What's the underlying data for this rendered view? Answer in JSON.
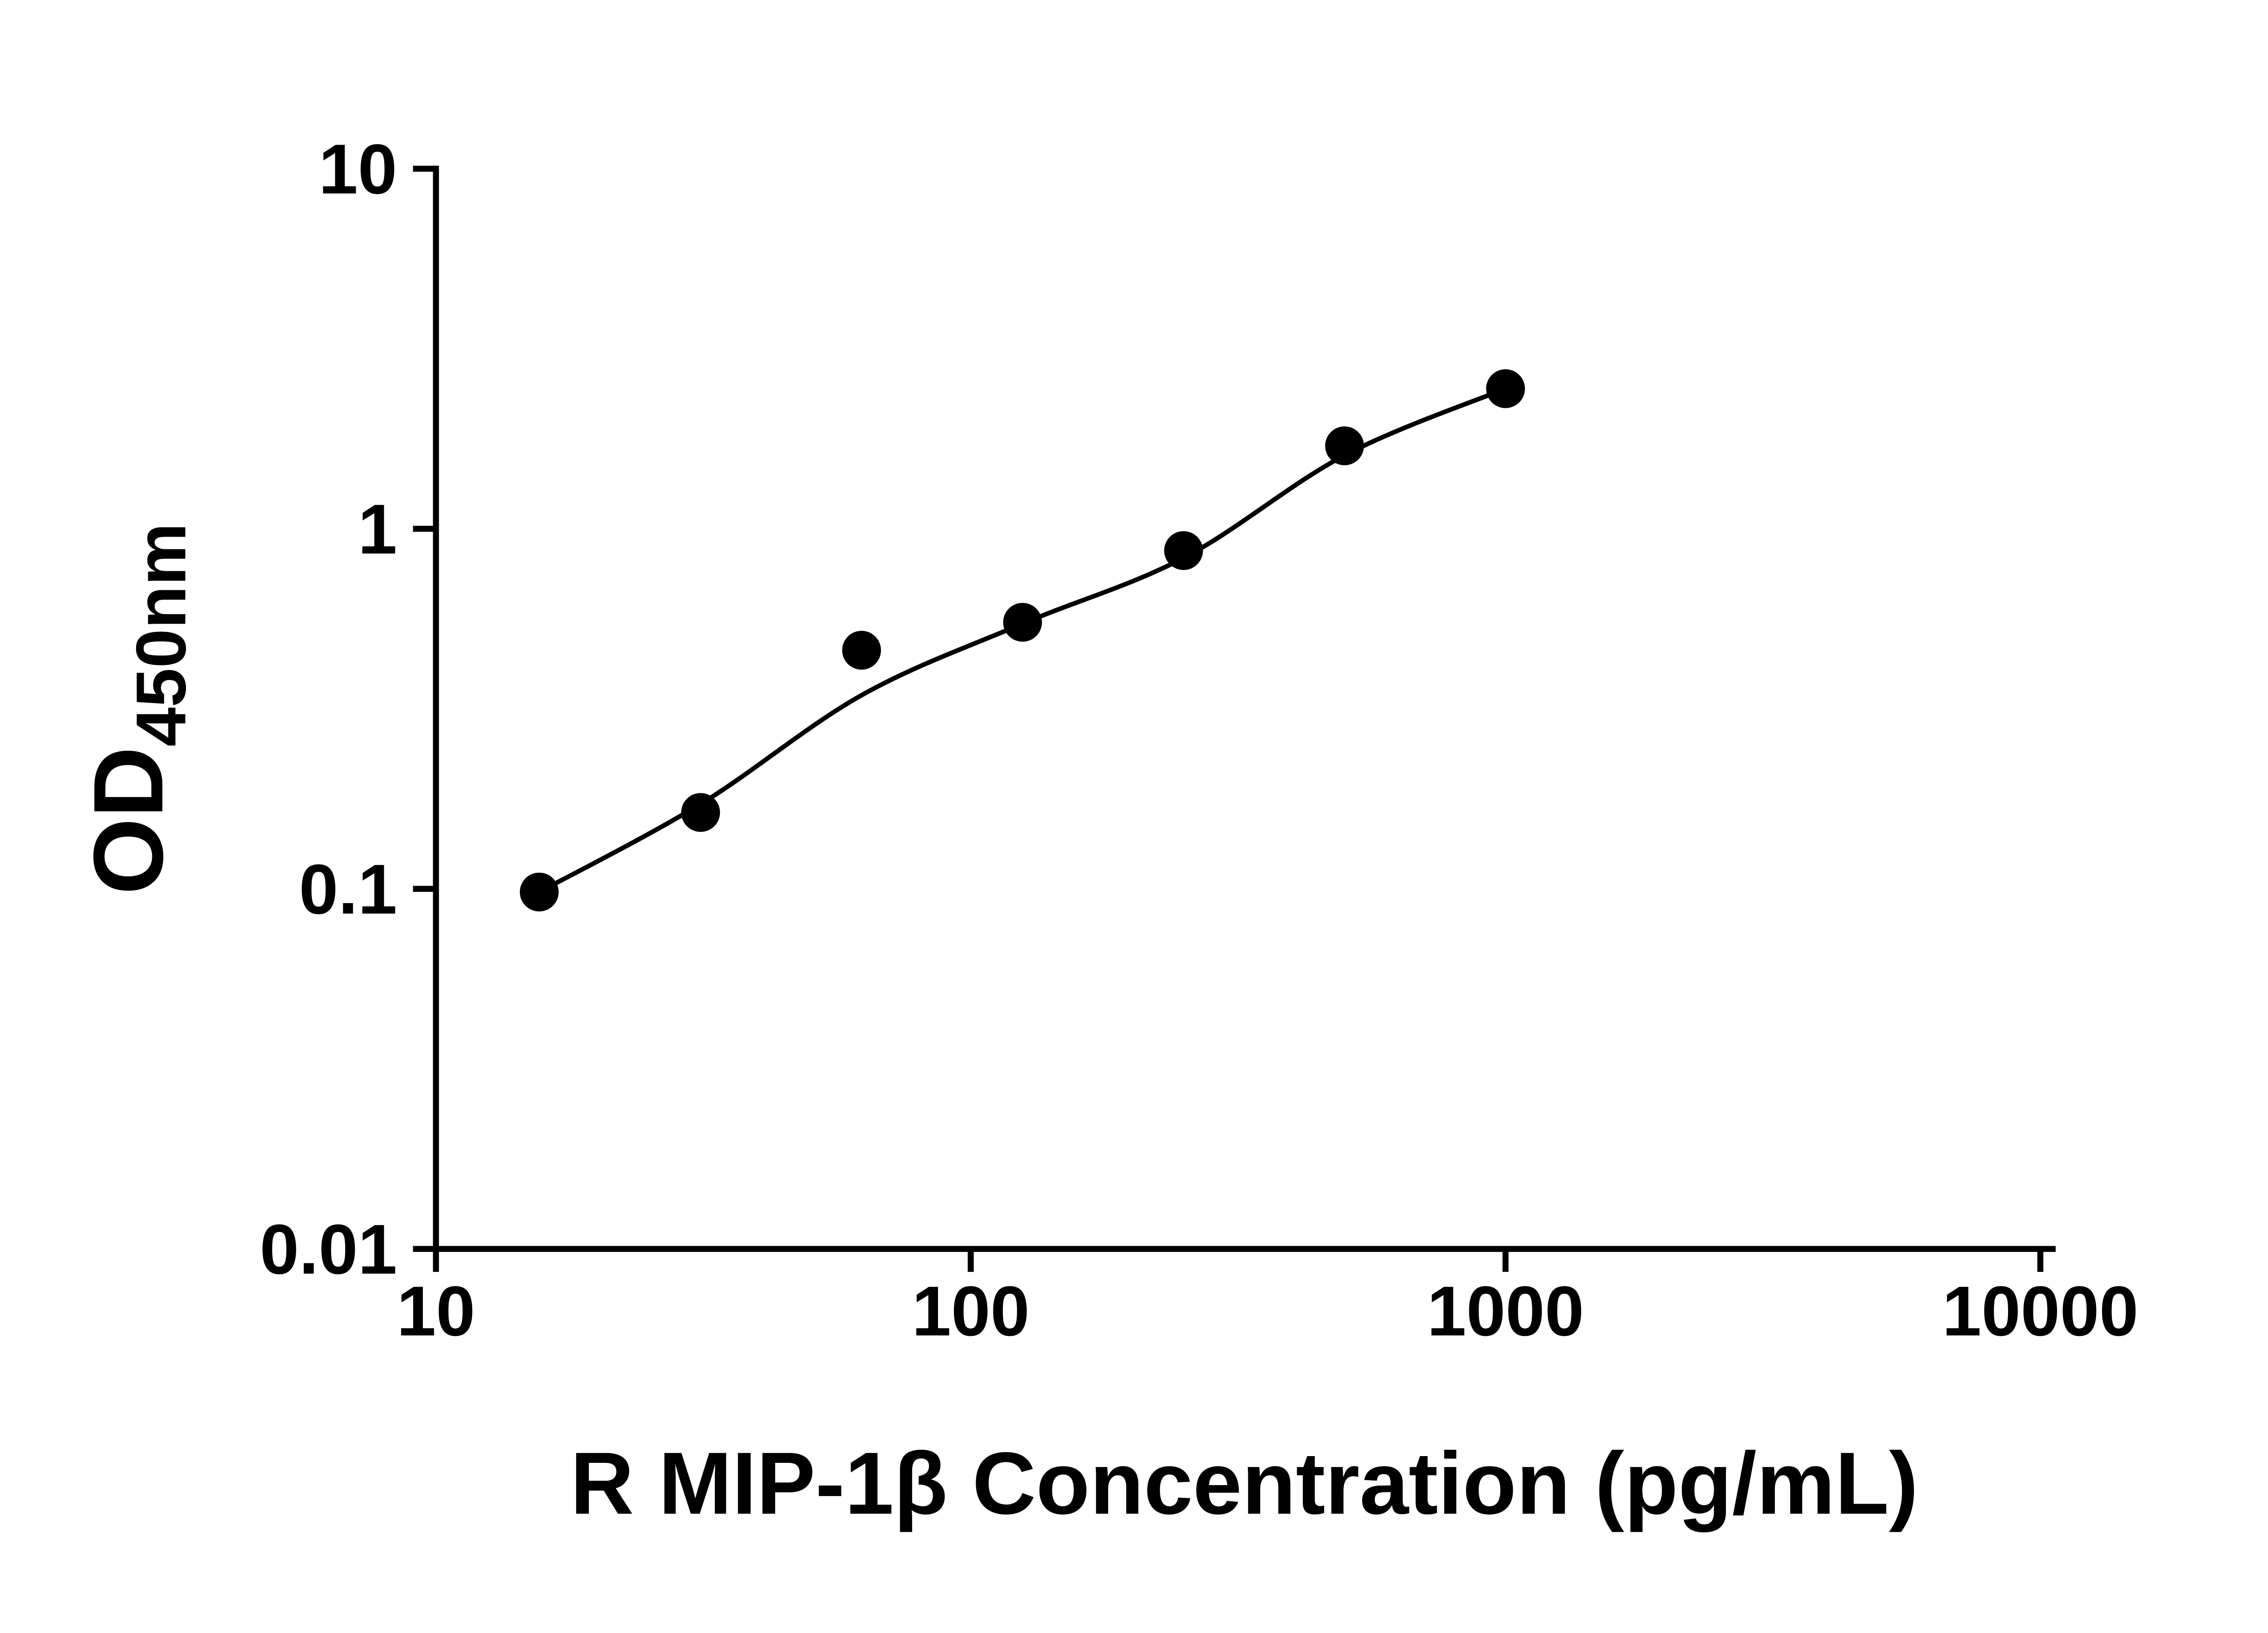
{
  "page": {
    "background": "#ffffff"
  },
  "chart_data": {
    "type": "scatter",
    "title": "",
    "xlabel": "R MIP-1β Concentration (pg/mL)",
    "ylabel": "OD450nm",
    "ylabel_main": "OD",
    "ylabel_sub": "450nm",
    "xscale": "log",
    "yscale": "log",
    "xlim": [
      10,
      10000
    ],
    "ylim": [
      0.01,
      10
    ],
    "grid": false,
    "legend": false,
    "axis_color": "#000000",
    "x_ticks": [
      {
        "value": 10,
        "label": "10"
      },
      {
        "value": 100,
        "label": "100"
      },
      {
        "value": 1000,
        "label": "1000"
      },
      {
        "value": 10000,
        "label": "10000"
      }
    ],
    "y_ticks": [
      {
        "value": 0.01,
        "label": "0.01"
      },
      {
        "value": 0.1,
        "label": "0.1"
      },
      {
        "value": 1,
        "label": "1"
      },
      {
        "value": 10,
        "label": "10"
      }
    ],
    "series": [
      {
        "marker": "filled-circle",
        "marker_color": "#000000",
        "x": [
          15.6,
          31.25,
          62.5,
          125,
          250,
          500,
          1000
        ],
        "y": [
          0.098,
          0.163,
          0.46,
          0.55,
          0.87,
          1.7,
          2.45
        ]
      }
    ],
    "fit_curve": {
      "line_color": "#000000",
      "x": [
        15.6,
        31.25,
        62.5,
        125,
        250,
        500,
        1000
      ],
      "y": [
        0.098,
        0.172,
        0.345,
        0.545,
        0.83,
        1.6,
        2.45
      ]
    }
  }
}
